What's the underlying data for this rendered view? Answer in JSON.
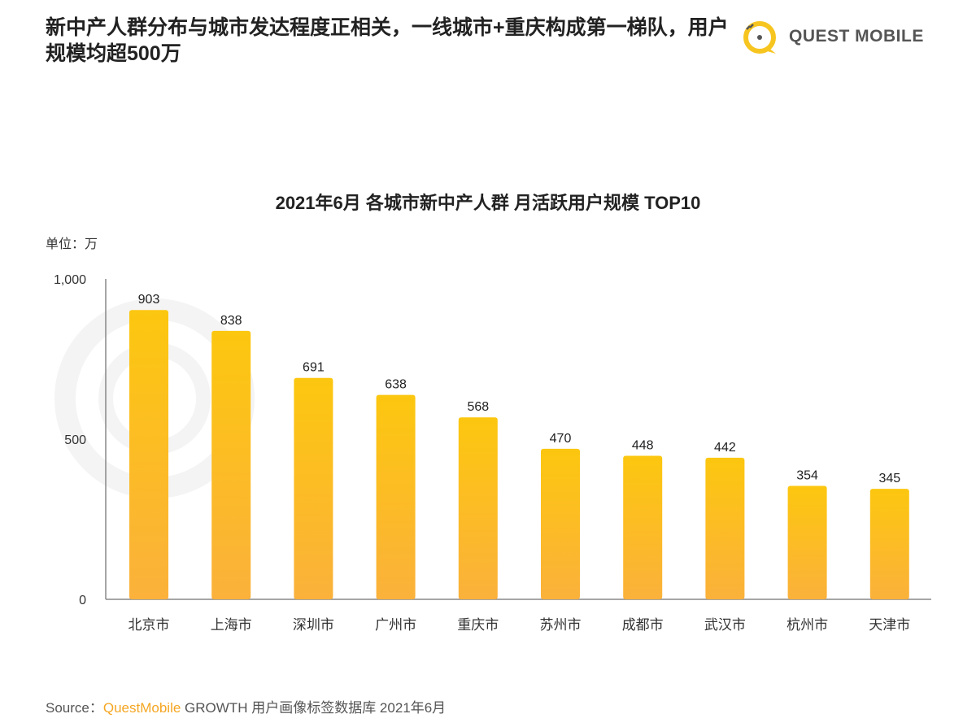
{
  "header": {
    "title": "新中产人群分布与城市发达程度正相关，一线城市+重庆构成第一梯队，用户规模均超500万",
    "logo_text": "QUEST MOBILE"
  },
  "watermark": "QUEST MOBILE",
  "unit_label": "单位：万",
  "source": {
    "prefix": "Source：",
    "brand": "QuestMobile",
    "rest": " GROWTH 用户画像标签数据库 2021年6月"
  },
  "chart_data": {
    "type": "bar",
    "title": "2021年6月 各城市新中产人群 月活跃用户规模 TOP10",
    "categories": [
      "北京市",
      "上海市",
      "深圳市",
      "广州市",
      "重庆市",
      "苏州市",
      "成都市",
      "武汉市",
      "杭州市",
      "天津市"
    ],
    "values": [
      903,
      838,
      691,
      638,
      568,
      470,
      448,
      442,
      354,
      345
    ],
    "ylabel": "单位：万",
    "xlabel": "",
    "ylim": [
      0,
      1000
    ],
    "yticks": [
      {
        "v": 0,
        "label": "0"
      },
      {
        "v": 500,
        "label": "500"
      },
      {
        "v": 1000,
        "label": "1,000"
      }
    ],
    "colors": {
      "top": "#fcc70f",
      "bottom": "#fbb13b"
    },
    "grid": false
  }
}
